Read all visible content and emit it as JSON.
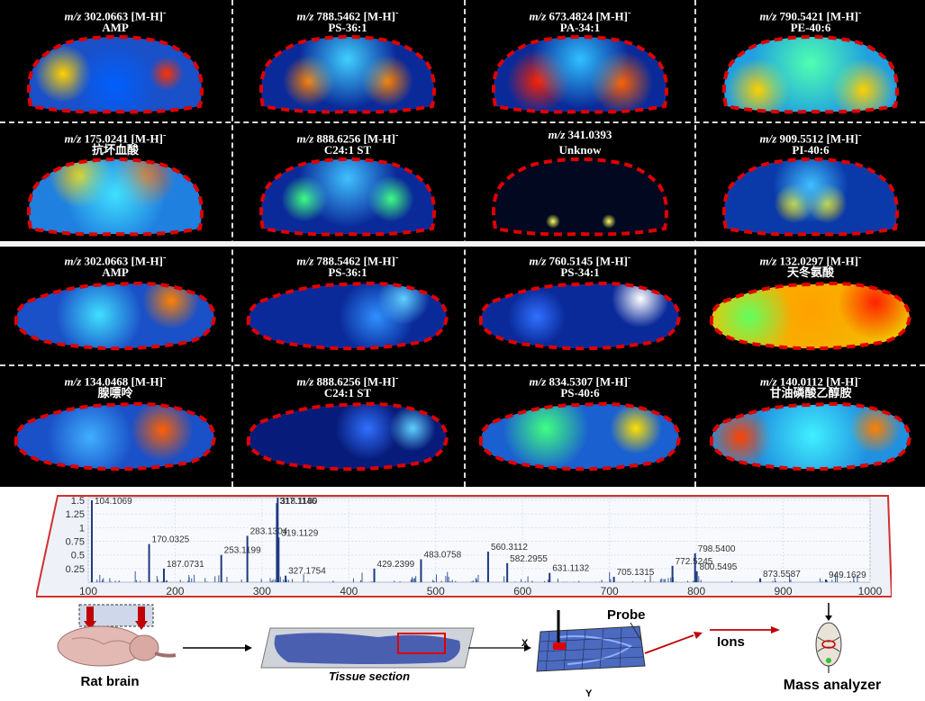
{
  "coronal": [
    {
      "mz": "302.0663 [M-H]",
      "charge": "-",
      "name": "AMP",
      "color": "#1a50c8",
      "hot": [
        [
          70,
          82,
          20,
          "#ffd000"
        ],
        [
          185,
          82,
          12,
          "#ff3000"
        ],
        [
          128,
          95,
          30,
          "#0060ff"
        ]
      ]
    },
    {
      "mz": "788.5462 [M-H]",
      "charge": "-",
      "name": "PS-36:1",
      "color": "#0a2a9a",
      "hot": [
        [
          85,
          90,
          18,
          "#ff8000"
        ],
        [
          172,
          90,
          18,
          "#ff8000"
        ],
        [
          128,
          66,
          34,
          "#40d0ff"
        ]
      ]
    },
    {
      "mz": "673.4824 [M-H]",
      "charge": "-",
      "name": "PA-34:1",
      "color": "#0a2a9a",
      "hot": [
        [
          82,
          90,
          22,
          "#ff2000"
        ],
        [
          174,
          92,
          22,
          "#ff6000"
        ],
        [
          128,
          66,
          34,
          "#30c0ff"
        ]
      ]
    },
    {
      "mz": "790.5421 [M-H]",
      "charge": "-",
      "name": "PE-40:6",
      "color": "#20a0e0",
      "hot": [
        [
          70,
          100,
          22,
          "#ffd000"
        ],
        [
          186,
          100,
          22,
          "#ffd000"
        ],
        [
          128,
          70,
          40,
          "#50ffb0"
        ]
      ]
    }
  ],
  "coronal2": [
    {
      "mz": "175.0241 [M-H]",
      "charge": "-",
      "name": "抗坏血酸",
      "color": "#2080e0",
      "hot": [
        [
          90,
          60,
          22,
          "#ffd000"
        ],
        [
          160,
          60,
          22,
          "#ff6000"
        ],
        [
          128,
          80,
          35,
          "#40e0ff"
        ]
      ]
    },
    {
      "mz": "888.6256 [M-H]",
      "charge": "-",
      "name": "C24:1 ST",
      "color": "#0a2a9a",
      "hot": [
        [
          80,
          85,
          16,
          "#40ff80"
        ],
        [
          176,
          85,
          16,
          "#40ff80"
        ],
        [
          128,
          62,
          34,
          "#40c0ff"
        ]
      ]
    },
    {
      "mz": "341.0393",
      "charge": "",
      "name": "Unknow",
      "color": "#020820",
      "hot": [
        [
          98,
          110,
          5,
          "#ffff60"
        ],
        [
          160,
          110,
          5,
          "#ffff60"
        ]
      ]
    },
    {
      "mz": "909.5512 [M-H]",
      "charge": "-",
      "name": "PI-40:6",
      "color": "#0a3aaa",
      "hot": [
        [
          110,
          90,
          14,
          "#ffe000"
        ],
        [
          146,
          90,
          14,
          "#ffe000"
        ],
        [
          128,
          70,
          26,
          "#40c0ff"
        ]
      ]
    }
  ],
  "sagittal": [
    {
      "mz": "302.0663 [M-H]",
      "charge": "-",
      "name": "AMP",
      "color": "#1a50c8",
      "hot": [
        [
          190,
          62,
          20,
          "#ff8000"
        ],
        [
          110,
          78,
          30,
          "#40e0ff"
        ]
      ]
    },
    {
      "mz": "788.5462 [M-H]",
      "charge": "-",
      "name": "PS-36:1",
      "color": "#0a2a9a",
      "hot": [
        [
          160,
          80,
          26,
          "#3090ff"
        ],
        [
          190,
          60,
          18,
          "#60d0ff"
        ]
      ]
    },
    {
      "mz": "760.5145 [M-H]",
      "charge": "-",
      "name": "PS-34:1",
      "color": "#0a2a9a",
      "hot": [
        [
          195,
          60,
          20,
          "#ffffff"
        ],
        [
          80,
          80,
          20,
          "#3070ff"
        ]
      ]
    },
    {
      "mz": "132.0297 [M-H]",
      "charge": "-",
      "name": "天冬氨酸",
      "color": "#f0c000",
      "hot": [
        [
          128,
          72,
          60,
          "#ffa000"
        ],
        [
          200,
          64,
          26,
          "#ff2000"
        ],
        [
          60,
          80,
          30,
          "#60ff60"
        ]
      ]
    }
  ],
  "sagittal2": [
    {
      "mz": "134.0468 [M-H]",
      "charge": "-",
      "name": "腺嘌呤",
      "color": "#1a50c8",
      "hot": [
        [
          180,
          72,
          22,
          "#ff6000"
        ],
        [
          100,
          80,
          30,
          "#40b0ff"
        ]
      ]
    },
    {
      "mz": "888.6256 [M-H]",
      "charge": "-",
      "name": "C24:1 ST",
      "color": "#071c7a",
      "hot": [
        [
          150,
          70,
          22,
          "#3070ff"
        ],
        [
          200,
          70,
          16,
          "#60d0ff"
        ]
      ]
    },
    {
      "mz": "834.5307 [M-H]",
      "charge": "-",
      "name": "PS-40:6",
      "color": "#1a60d0",
      "hot": [
        [
          90,
          70,
          30,
          "#40ff80"
        ],
        [
          190,
          70,
          18,
          "#ffe000"
        ]
      ]
    },
    {
      "mz": "140.0112 [M-H]",
      "charge": "-",
      "name": "甘油磷酸乙醇胺",
      "color": "#2090e0",
      "hot": [
        [
          50,
          80,
          22,
          "#ff4000"
        ],
        [
          130,
          78,
          40,
          "#40f0ff"
        ],
        [
          200,
          70,
          18,
          "#ff8000"
        ]
      ]
    }
  ],
  "spectrum": {
    "xticks": [
      "100",
      "200",
      "300",
      "400",
      "500",
      "600",
      "700",
      "800",
      "900",
      "1000"
    ],
    "yticks": [
      "0.25",
      "0.5",
      "0.75",
      "1",
      "1.25",
      "1.5"
    ],
    "xmin": 100,
    "xmax": 1000,
    "ymax": 1.55,
    "peaks": [
      {
        "x": 104.1069,
        "y": 1.5,
        "label": "104.1069"
      },
      {
        "x": 170.0325,
        "y": 0.7,
        "label": "170.0325"
      },
      {
        "x": 187.0731,
        "y": 0.25,
        "label": "187.0731"
      },
      {
        "x": 253.1199,
        "y": 0.5,
        "label": "253.1199"
      },
      {
        "x": 283.1304,
        "y": 0.85,
        "label": "283.1304"
      },
      {
        "x": 317.1146,
        "y": 1.45,
        "label": "317.1146"
      },
      {
        "x": 318.118,
        "y": 1.55,
        "label": "318.1180"
      },
      {
        "x": 319.1129,
        "y": 0.82,
        "label": "319.1129"
      },
      {
        "x": 327.1754,
        "y": 0.12,
        "label": "327.1754"
      },
      {
        "x": 429.2399,
        "y": 0.25,
        "label": "429.2399"
      },
      {
        "x": 483.0758,
        "y": 0.42,
        "label": "483.0758"
      },
      {
        "x": 560.3112,
        "y": 0.56,
        "label": "560.3112"
      },
      {
        "x": 582.2955,
        "y": 0.35,
        "label": "582.2955"
      },
      {
        "x": 631.1132,
        "y": 0.17,
        "label": "631.1132"
      },
      {
        "x": 705.1315,
        "y": 0.1,
        "label": "705.1315"
      },
      {
        "x": 772.5245,
        "y": 0.3,
        "label": "772.5245"
      },
      {
        "x": 798.54,
        "y": 0.53,
        "label": "798.5400"
      },
      {
        "x": 800.5495,
        "y": 0.2,
        "label": "800.5495"
      },
      {
        "x": 873.5587,
        "y": 0.07,
        "label": "873.5587"
      },
      {
        "x": 949.1629,
        "y": 0.05,
        "label": "949.1629"
      }
    ]
  },
  "workflow": {
    "rat_brain": "Rat brain",
    "tissue_section": "Tissue section",
    "probe": "Probe",
    "ions": "Ions",
    "mass_analyzer": "Mass analyzer",
    "axis_x": "X",
    "axis_y": "Y"
  }
}
